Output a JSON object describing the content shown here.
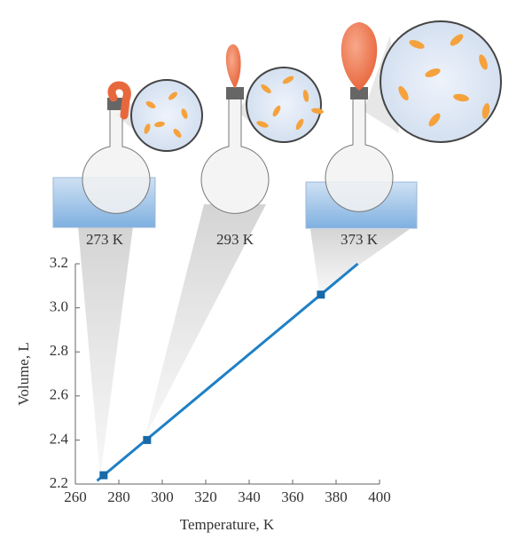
{
  "chart_data": {
    "type": "line",
    "x_label": "Temperature, K",
    "y_label": "Volume, L",
    "annotations": [
      "273 K",
      "293 K",
      "373 K"
    ],
    "series": [
      {
        "color": "#1f80c6",
        "x": [
          270,
          390
        ],
        "values": [
          2.215,
          3.2
        ],
        "marker": false
      },
      {
        "color": "#1769a8",
        "x": [
          273,
          293,
          373
        ],
        "values": [
          2.24,
          2.4,
          3.06
        ],
        "marker": true
      }
    ],
    "xlim": [
      260,
      400
    ],
    "xticks": [
      260,
      280,
      300,
      320,
      340,
      360,
      380,
      400
    ],
    "ylim": [
      2.2,
      3.2
    ],
    "yticks": [
      2.2,
      2.4,
      2.6,
      2.8,
      {
        "value": 3,
        "label": "3.0"
      },
      3.2
    ],
    "grid": false
  }
}
